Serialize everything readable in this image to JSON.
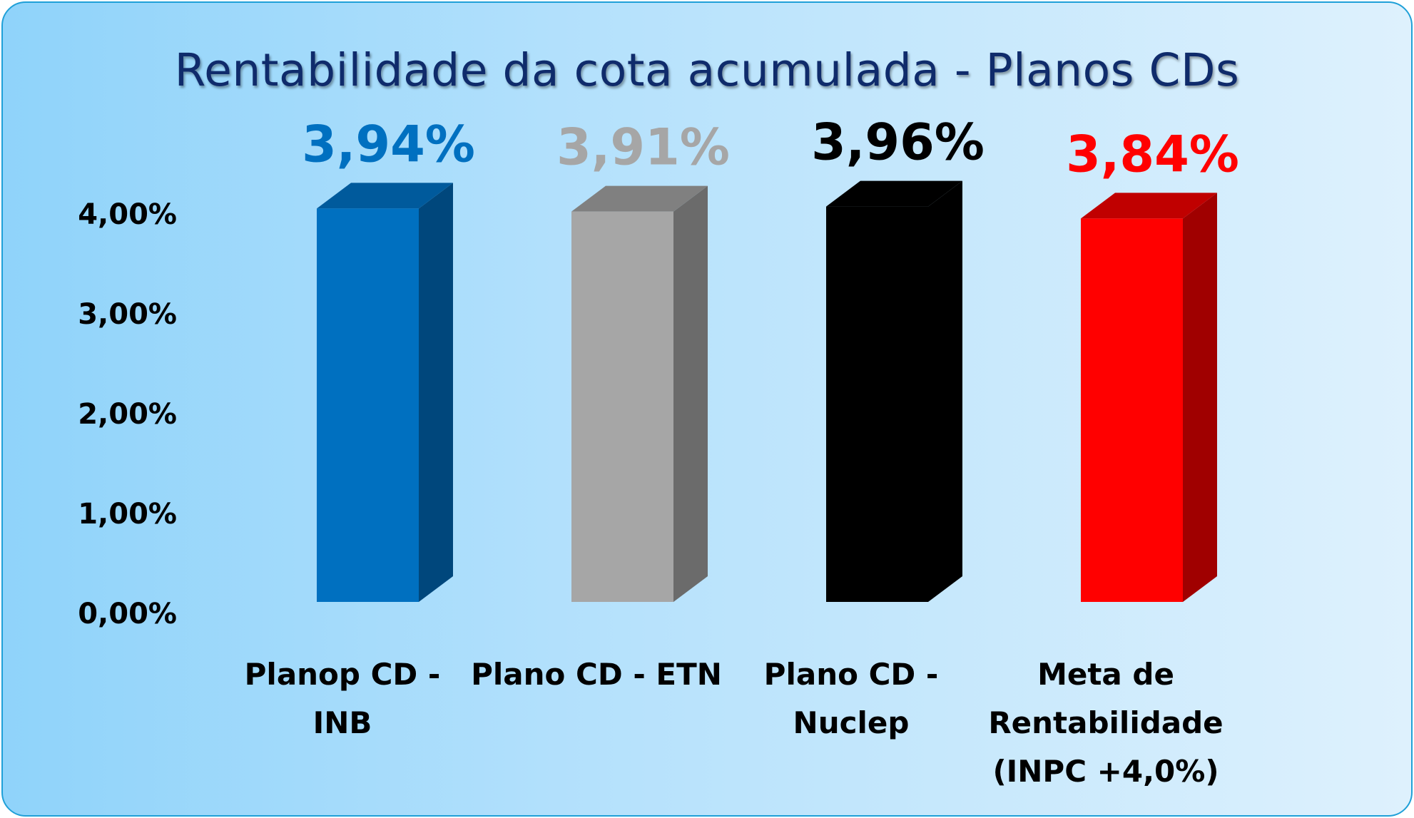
{
  "chart_data": {
    "type": "bar",
    "title": "Rentabilidade da cota acumulada - Planos CDs",
    "categories": [
      [
        "Planop CD -",
        "INB"
      ],
      [
        "Plano CD - ETN"
      ],
      [
        "Plano CD -",
        "Nuclep"
      ],
      [
        "Meta de",
        "Rentabilidade",
        "(INPC +4,0%)"
      ]
    ],
    "values": [
      3.94,
      3.91,
      3.96,
      3.84
    ],
    "value_labels": [
      "3,94%",
      "3,91%",
      "3,96%",
      "3,84%"
    ],
    "bar_colors": [
      {
        "front": "#0070c0",
        "side": "#00477c",
        "top": "#005a9c",
        "label": "#0070c0"
      },
      {
        "front": "#a6a6a6",
        "side": "#6b6b6b",
        "top": "#808080",
        "label": "#a6a6a6"
      },
      {
        "front": "#000000",
        "side": "#000000",
        "top": "#000000",
        "label": "#000000"
      },
      {
        "front": "#ff0000",
        "side": "#a00000",
        "top": "#c00000",
        "label": "#ff0000"
      }
    ],
    "y_ticks": [
      0,
      1,
      2,
      3,
      4
    ],
    "y_tick_labels": [
      "0,00%",
      "1,00%",
      "2,00%",
      "3,00%",
      "4,00%"
    ],
    "ylim": [
      0,
      4
    ],
    "grid": false,
    "legend": "none"
  }
}
